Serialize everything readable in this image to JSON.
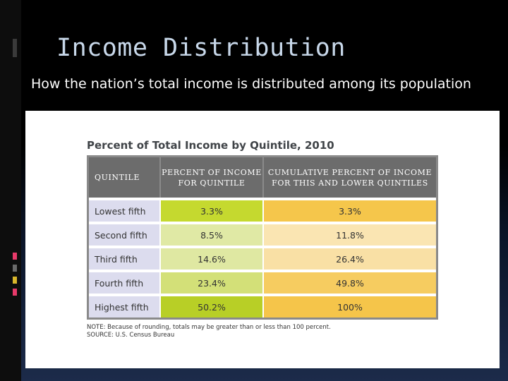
{
  "slide": {
    "title": "Income Distribution",
    "subtitle": "How the nation’s total income is distributed among its population"
  },
  "table": {
    "title": "Percent of Total Income by Quintile, 2010",
    "headers": [
      "QUINTILE",
      "PERCENT OF INCOME FOR QUINTILE",
      "CUMULATIVE PERCENT OF INCOME FOR THIS AND LOWER QUINTILES"
    ],
    "rows": [
      {
        "quintile": "Lowest fifth",
        "percent": "3.3%",
        "cumulative": "3.3%"
      },
      {
        "quintile": "Second fifth",
        "percent": "8.5%",
        "cumulative": "11.8%"
      },
      {
        "quintile": "Third fifth",
        "percent": "14.6%",
        "cumulative": "26.4%"
      },
      {
        "quintile": "Fourth fifth",
        "percent": "23.4%",
        "cumulative": "49.8%"
      },
      {
        "quintile": "Highest fifth",
        "percent": "50.2%",
        "cumulative": "100%"
      }
    ],
    "note": "NOTE: Because of rounding, totals may be greater than or less than 100 percent.",
    "source": "SOURCE: U.S. Census Bureau"
  },
  "colors": {
    "header_bg": "#6c6c6c",
    "label_bg": "#dcdcee",
    "percent_col": [
      "#c5d92f",
      "#e0e9a5",
      "#dfe8a2",
      "#d3e078",
      "#b8cf26"
    ],
    "cumulative_col": [
      "#f5c64b",
      "#fae5b2",
      "#f9e0a5",
      "#f6cc60",
      "#f5c54a"
    ],
    "accent_ticks": [
      "#e83a6a",
      "#6a6a6a",
      "#d9b62b",
      "#e83a6a"
    ]
  }
}
